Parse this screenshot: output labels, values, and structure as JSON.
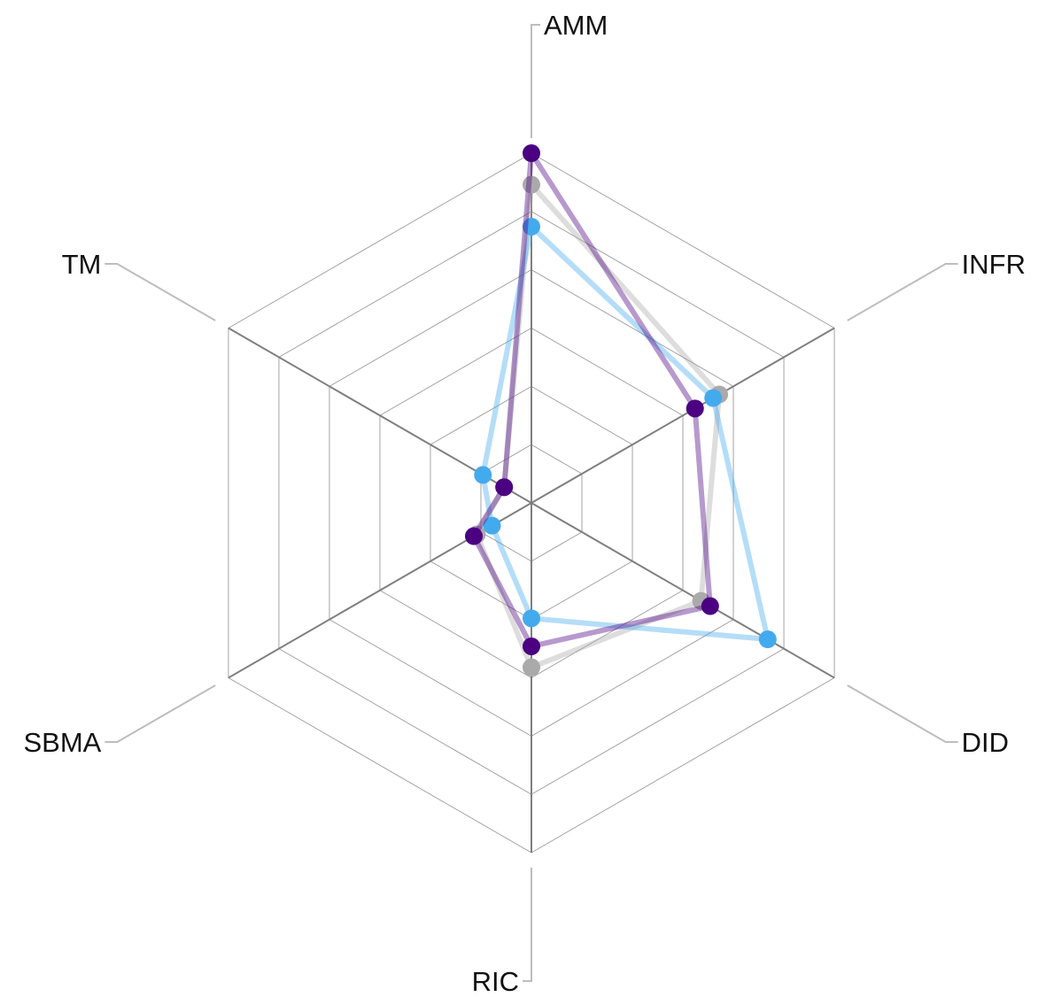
{
  "chart_data": {
    "type": "radar",
    "title": "",
    "axes": [
      "AMM",
      "INFR",
      "DID",
      "RIC",
      "SBMA",
      "TM"
    ],
    "range": [
      0,
      1
    ],
    "grid_levels": 6,
    "grid": true,
    "legend": "none",
    "series": [
      {
        "color": "#aaaaaa",
        "values": [
          0.91,
          0.62,
          0.56,
          0.47,
          0.18,
          0.09
        ]
      },
      {
        "color": "#44aaee",
        "values": [
          0.79,
          0.6,
          0.78,
          0.33,
          0.13,
          0.16
        ]
      },
      {
        "color": "#4b0082",
        "values": [
          1.0,
          0.54,
          0.59,
          0.41,
          0.19,
          0.09
        ]
      }
    ]
  }
}
